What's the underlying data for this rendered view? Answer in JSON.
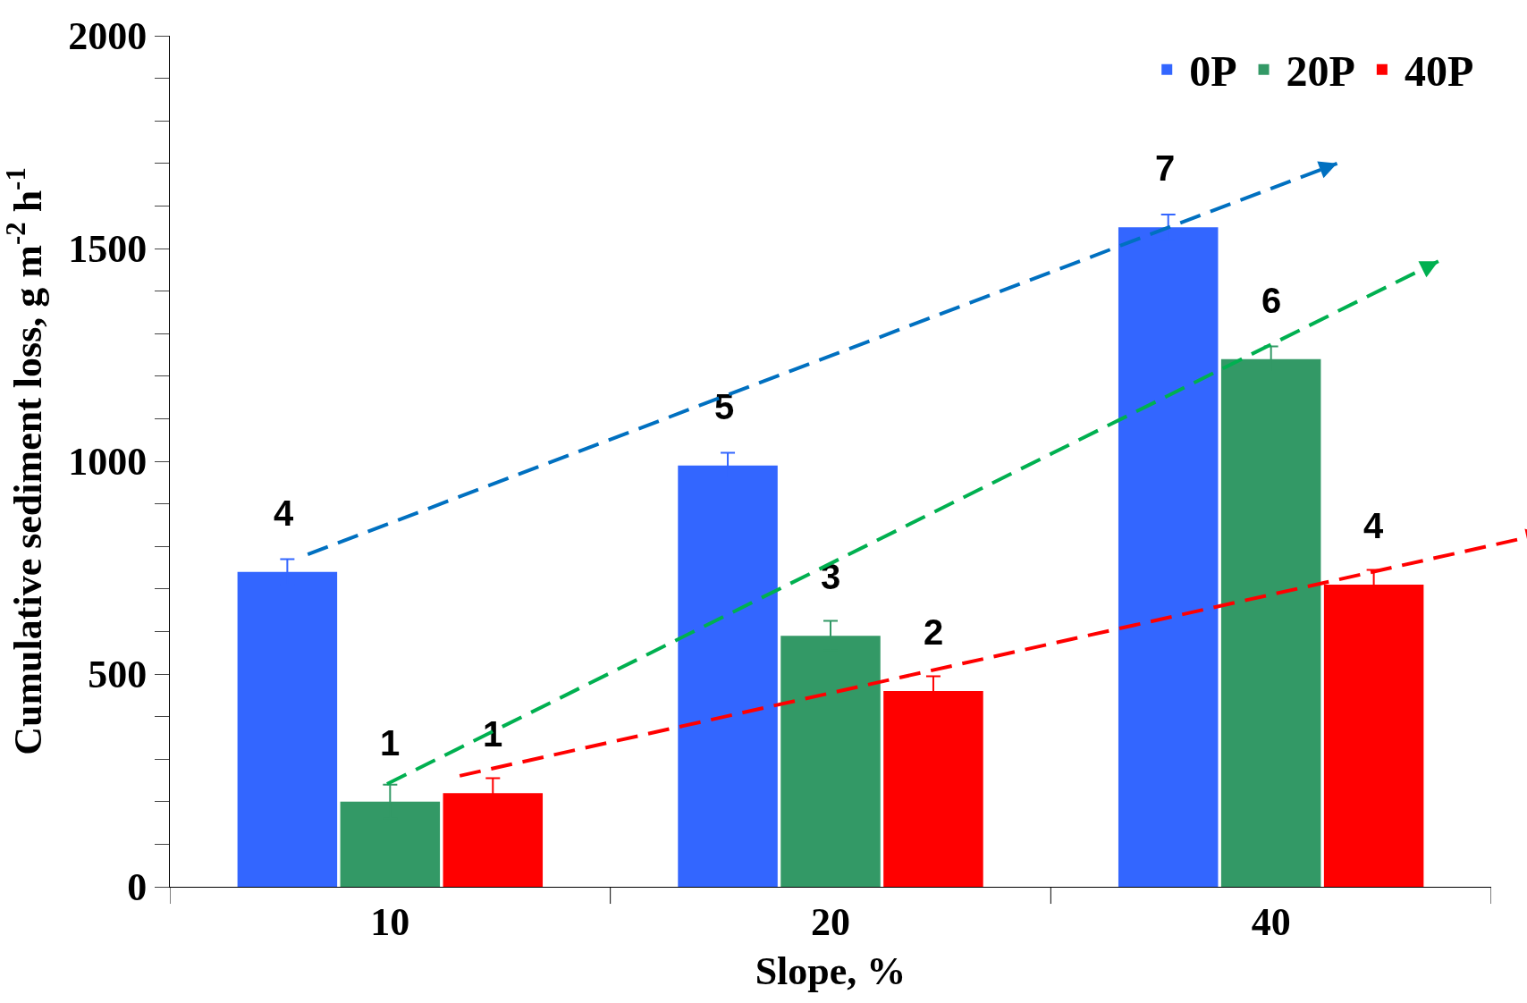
{
  "chart_data": {
    "type": "bar",
    "xlabel": "Slope, %",
    "ylabel": "Cumulative sediment loss, g m$^{-2}$ h$^{-1}$",
    "categories": [
      "10",
      "20",
      "40"
    ],
    "series": [
      {
        "name": "0P",
        "color": "#3366ff",
        "values": [
          740,
          990,
          1550
        ],
        "errors": [
          30,
          30,
          30
        ]
      },
      {
        "name": "20P",
        "color": "#339966",
        "values": [
          200,
          590,
          1240
        ],
        "errors": [
          40,
          35,
          30
        ]
      },
      {
        "name": "40P",
        "color": "#ff0000",
        "values": [
          220,
          460,
          710
        ],
        "errors": [
          35,
          35,
          35
        ]
      }
    ],
    "annotations": [
      "4",
      "1",
      "1",
      "5",
      "3",
      "2",
      "7",
      "6",
      "4"
    ],
    "ylim": [
      0,
      2000
    ],
    "yticks": [
      0,
      {
        "value": 100,
        "label": null
      },
      {
        "value": 200,
        "label": null
      },
      {
        "value": 300,
        "label": null
      },
      {
        "value": 400,
        "label": null
      },
      500,
      {
        "value": 600,
        "label": null
      },
      {
        "value": 700,
        "label": null
      },
      {
        "value": 800,
        "label": null
      },
      {
        "value": 900,
        "label": null
      },
      1000,
      {
        "value": 1100,
        "label": null
      },
      {
        "value": 1200,
        "label": null
      },
      {
        "value": 1300,
        "label": null
      },
      {
        "value": 1400,
        "label": null
      },
      1500,
      {
        "value": 1600,
        "label": null
      },
      {
        "value": 1700,
        "label": null
      },
      {
        "value": 1800,
        "label": null
      },
      {
        "value": 1900,
        "label": null
      },
      2000
    ],
    "legend": "top right"
  }
}
